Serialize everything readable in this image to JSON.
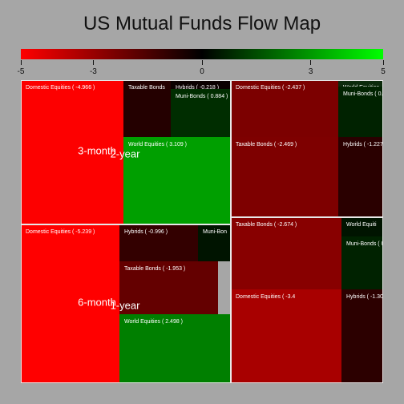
{
  "chart_data": {
    "type": "heatmap",
    "subtype": "treemap",
    "title": "US Mutual Funds Flow Map",
    "color_scale": {
      "min": -5,
      "max": 5,
      "ticks": [
        -5,
        -3,
        0,
        3,
        5
      ],
      "tick_labels": [
        "-5",
        "-3",
        "0",
        "3",
        "5"
      ],
      "colors": [
        "#ff0000",
        "#000000",
        "#00ff00"
      ]
    },
    "groups": [
      {
        "name": "2-year",
        "items": [
          {
            "name": "Domestic Equities",
            "value": -4.966,
            "label": "Domestic Equities ( -4.966 )"
          },
          {
            "name": "Taxable Bonds",
            "value": null,
            "label": "Taxable Bonds"
          },
          {
            "name": "Hybrids",
            "value": -0.218,
            "label": "Hybrids ( -0.218 )"
          },
          {
            "name": "Muni-Bonds",
            "value": 0.884,
            "label": "Muni-Bonds ( 0.884 )"
          },
          {
            "name": "World Equities",
            "value": 3.109,
            "label": "World Equities ( 3.109 )"
          }
        ]
      },
      {
        "name": "3-month",
        "items": [
          {
            "name": "Domestic Equities",
            "value": -2.437,
            "label": "Domestic Equities ( -2.437 )"
          },
          {
            "name": "Taxable Bonds",
            "value": -2.469,
            "label": "Taxable Bonds ( -2.469 )"
          },
          {
            "name": "World Equities",
            "value": null,
            "label": "World Equities"
          },
          {
            "name": "Muni-Bonds",
            "value": null,
            "label": "Muni-Bonds ( 0."
          },
          {
            "name": "Hybrids",
            "value": null,
            "label": "Hybrids ( -1.227"
          }
        ]
      },
      {
        "name": "1-year",
        "items": [
          {
            "name": "Domestic Equities",
            "value": -5.239,
            "label": "Domestic Equities ( -5.239 )"
          },
          {
            "name": "Hybrids",
            "value": -0.996,
            "label": "Hybrids ( -0.996 )"
          },
          {
            "name": "Muni-Bonds",
            "value": null,
            "label": "Muni-Bon"
          },
          {
            "name": "Taxable Bonds",
            "value": -1.953,
            "label": "Taxable Bonds ( -1.953 )"
          },
          {
            "name": "World Equities",
            "value": 2.498,
            "label": "World Equities ( 2.498 )"
          }
        ]
      },
      {
        "name": "6-month",
        "items": [
          {
            "name": "Taxable Bonds",
            "value": -2.674,
            "label": "Taxable Bonds ( -2.674 )"
          },
          {
            "name": "World Equities",
            "value": null,
            "label": "World Equiti"
          },
          {
            "name": "Muni-Bonds",
            "value": null,
            "label": "Muni-Bonds ( 0."
          },
          {
            "name": "Domestic Equities",
            "value": null,
            "label": "Domestic Equities ( -3.4"
          },
          {
            "name": "Hybrids",
            "value": null,
            "label": "Hybrids ( -1.30"
          }
        ]
      }
    ]
  }
}
